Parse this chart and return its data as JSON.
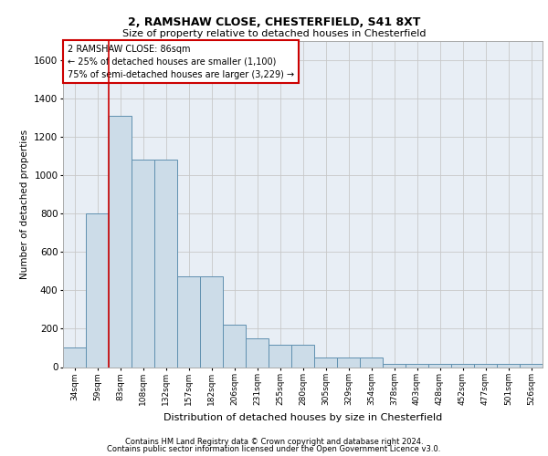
{
  "title1": "2, RAMSHAW CLOSE, CHESTERFIELD, S41 8XT",
  "title2": "Size of property relative to detached houses in Chesterfield",
  "xlabel": "Distribution of detached houses by size in Chesterfield",
  "ylabel": "Number of detached properties",
  "categories": [
    "34sqm",
    "59sqm",
    "83sqm",
    "108sqm",
    "132sqm",
    "157sqm",
    "182sqm",
    "206sqm",
    "231sqm",
    "255sqm",
    "280sqm",
    "305sqm",
    "329sqm",
    "354sqm",
    "378sqm",
    "403sqm",
    "428sqm",
    "452sqm",
    "477sqm",
    "501sqm",
    "526sqm"
  ],
  "values": [
    100,
    800,
    1310,
    1080,
    1080,
    475,
    475,
    220,
    150,
    115,
    115,
    50,
    50,
    50,
    18,
    18,
    18,
    18,
    18,
    18,
    18
  ],
  "bar_color": "#ccdce8",
  "bar_edge_color": "#6090b0",
  "grid_color": "#c8c8c8",
  "bg_color": "#e8eef5",
  "annotation_text1": "2 RAMSHAW CLOSE: 86sqm",
  "annotation_text2": "← 25% of detached houses are smaller (1,100)",
  "annotation_text3": "75% of semi-detached houses are larger (3,229) →",
  "annotation_box_color": "#ffffff",
  "annotation_box_edge": "#cc0000",
  "vline_color": "#cc0000",
  "footer1": "Contains HM Land Registry data © Crown copyright and database right 2024.",
  "footer2": "Contains public sector information licensed under the Open Government Licence v3.0.",
  "ylim": [
    0,
    1700
  ],
  "yticks": [
    0,
    200,
    400,
    600,
    800,
    1000,
    1200,
    1400,
    1600
  ]
}
